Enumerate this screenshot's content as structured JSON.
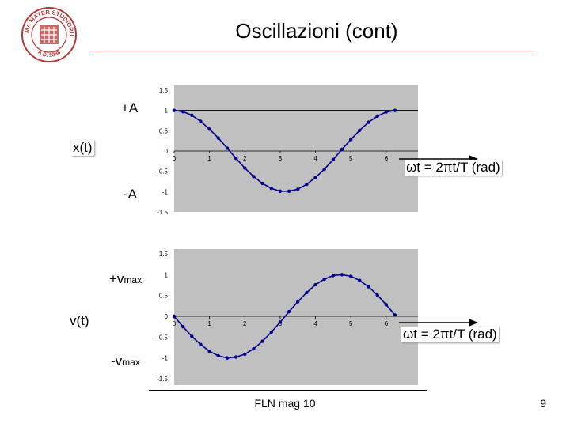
{
  "title": "Oscillazioni (cont)",
  "footer": "FLN mag 10",
  "page_number": "9",
  "logo": {
    "text": "ALMA MATER STUDIORUM",
    "year": "A.D. 1088",
    "color": "#b03a3a"
  },
  "labels": {
    "x_top": "+A",
    "x_bottom": "-A",
    "x_name": "x(t)",
    "v_top_main": "+v",
    "v_top_sub": "max",
    "v_bottom_main": "-v",
    "v_bottom_sub": "max",
    "v_name": "v(t)",
    "axis_arrow": "ωt = 2πt/T (rad)"
  },
  "colors": {
    "plot_bg": "#c0c0c0",
    "series": "#00008b",
    "accent_rule": "#c0504d"
  },
  "chart_data": [
    {
      "type": "line",
      "title": "x(t)",
      "xlabel": "ωt = 2πt/T (rad)",
      "ylabel": "x(t)",
      "x_ticks": [
        0,
        1,
        2,
        3,
        4,
        5,
        6
      ],
      "y_ticks": [
        1.5,
        1,
        0.5,
        0,
        -0.5,
        -1,
        -1.5
      ],
      "xlim": [
        0,
        6.9
      ],
      "ylim": [
        -1.5,
        1.5
      ],
      "reference_line": 1,
      "series": [
        {
          "name": "x(t)",
          "x": [
            0,
            0.25,
            0.5,
            0.75,
            1,
            1.25,
            1.5,
            1.75,
            2,
            2.25,
            2.5,
            2.75,
            3,
            3.25,
            3.5,
            3.75,
            4,
            4.25,
            4.5,
            4.75,
            5,
            5.25,
            5.5,
            5.75,
            6,
            6.25
          ],
          "values": [
            1,
            0.97,
            0.88,
            0.73,
            0.54,
            0.32,
            0.07,
            -0.18,
            -0.42,
            -0.63,
            -0.8,
            -0.92,
            -0.99,
            -0.99,
            -0.94,
            -0.82,
            -0.65,
            -0.45,
            -0.21,
            0.04,
            0.28,
            0.51,
            0.71,
            0.86,
            0.96,
            1
          ]
        }
      ]
    },
    {
      "type": "line",
      "title": "v(t)",
      "xlabel": "ωt = 2πt/T (rad)",
      "ylabel": "v(t)",
      "x_ticks": [
        0,
        1,
        2,
        3,
        4,
        5,
        6
      ],
      "y_ticks": [
        1.5,
        1,
        0.5,
        0,
        -0.5,
        -1,
        -1.5
      ],
      "xlim": [
        0,
        6.9
      ],
      "ylim": [
        -1.5,
        1.5
      ],
      "series": [
        {
          "name": "v(t)",
          "x": [
            0,
            0.25,
            0.5,
            0.75,
            1,
            1.25,
            1.5,
            1.75,
            2,
            2.25,
            2.5,
            2.75,
            3,
            3.25,
            3.5,
            3.75,
            4,
            4.25,
            4.5,
            4.75,
            5,
            5.25,
            5.5,
            5.75,
            6,
            6.25
          ],
          "values": [
            0,
            -0.25,
            -0.48,
            -0.68,
            -0.84,
            -0.95,
            -1,
            -0.98,
            -0.91,
            -0.78,
            -0.6,
            -0.38,
            -0.14,
            0.11,
            0.35,
            0.57,
            0.76,
            0.89,
            0.98,
            1,
            0.96,
            0.86,
            0.71,
            0.51,
            0.28,
            0.03
          ]
        }
      ]
    }
  ]
}
